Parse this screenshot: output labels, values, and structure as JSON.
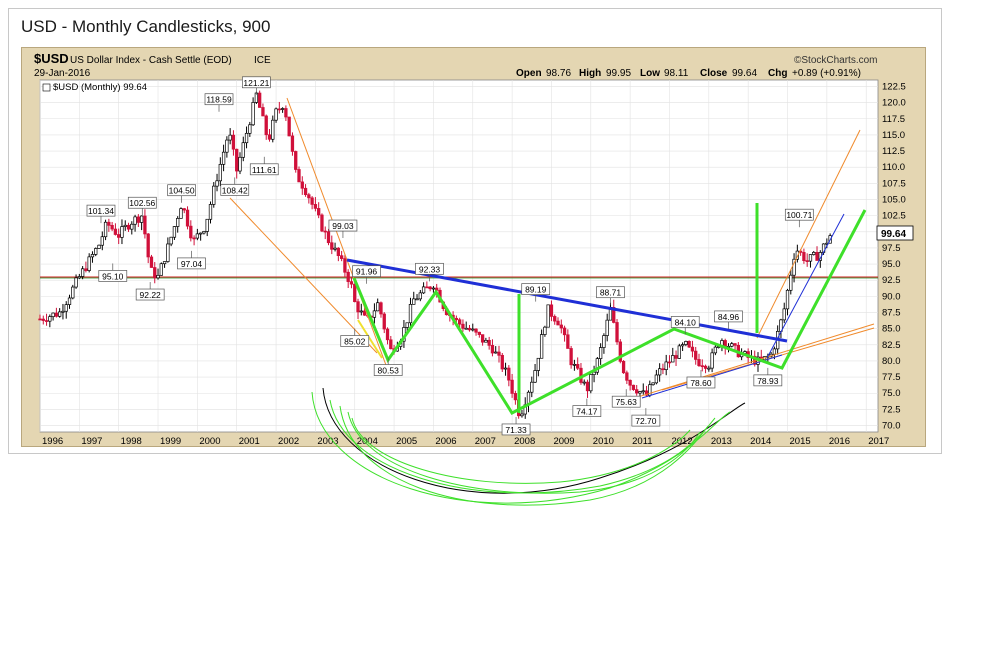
{
  "window": {
    "title": "USD - Monthly Candlesticks, 900"
  },
  "header": {
    "symbol": "$USD",
    "name": "US Dollar Index - Cash Settle (EOD)",
    "exchange": "ICE",
    "date": "29-Jan-2016",
    "brand": "©StockCharts.com",
    "open_label": "Open",
    "open": "98.76",
    "high_label": "High",
    "high": "99.95",
    "low_label": "Low",
    "low": "98.11",
    "close_label": "Close",
    "close": "99.64",
    "chg_label": "Chg",
    "chg": "+0.89 (+0.91%)"
  },
  "legend": {
    "label": "$USD (Monthly) 99.64"
  },
  "last_price_tag": "99.64",
  "colors": {
    "up": "#000000",
    "down": "#d0103a",
    "background": "#e4d6b2",
    "plot": "#ffffff",
    "grid": "#dcdcdc",
    "trend_blue": "#1f2fd6",
    "pattern_green": "#3ee02a",
    "channel_orange": "#f08a2c",
    "support_red": "#d22222",
    "support_green": "#1b8a1b"
  },
  "chart_data": {
    "type": "candlestick",
    "title": "USD - Monthly Candlesticks, 900",
    "ylim": [
      69,
      123.5
    ],
    "xlim": [
      1996,
      2017.3
    ],
    "y_ticks": [
      "122.5",
      "120.0",
      "117.5",
      "115.0",
      "112.5",
      "110.0",
      "107.5",
      "105.0",
      "102.5",
      "100.0",
      "97.5",
      "95.0",
      "92.5",
      "90.0",
      "87.5",
      "85.0",
      "82.5",
      "80.0",
      "77.5",
      "75.0",
      "72.5",
      "70.0"
    ],
    "x_ticks": [
      "1996",
      "1997",
      "1998",
      "1999",
      "2000",
      "2001",
      "2002",
      "2003",
      "2004",
      "2005",
      "2006",
      "2007",
      "2008",
      "2009",
      "2010",
      "2011",
      "2012",
      "2013",
      "2014",
      "2015",
      "2016",
      "2017"
    ],
    "grid": true,
    "legend_position": "top-left",
    "series": [
      {
        "name": "$USD (Monthly)",
        "points": [
          [
            1996.0,
            86.5
          ],
          [
            1996.5,
            87.5
          ],
          [
            1997.0,
            93.0
          ],
          [
            1997.5,
            98.0
          ],
          [
            1997.7,
            101.3
          ],
          [
            1998.0,
            99.5
          ],
          [
            1998.3,
            101.5
          ],
          [
            1998.6,
            102.6
          ],
          [
            1998.8,
            94.0
          ],
          [
            1999.0,
            93.0
          ],
          [
            1999.3,
            98.5
          ],
          [
            1999.6,
            104.5
          ],
          [
            1999.9,
            98.5
          ],
          [
            2000.2,
            101.0
          ],
          [
            2000.5,
            108.5
          ],
          [
            2000.8,
            115.5
          ],
          [
            2001.0,
            109.5
          ],
          [
            2001.3,
            116.5
          ],
          [
            2001.5,
            121.2
          ],
          [
            2001.8,
            114.0
          ],
          [
            2002.0,
            118.5
          ],
          [
            2002.2,
            120.0
          ],
          [
            2002.5,
            109.0
          ],
          [
            2002.8,
            106.0
          ],
          [
            2003.0,
            103.0
          ],
          [
            2003.3,
            99.0
          ],
          [
            2003.6,
            96.0
          ],
          [
            2003.9,
            92.0
          ],
          [
            2004.0,
            89.0
          ],
          [
            2004.3,
            86.0
          ],
          [
            2004.6,
            89.0
          ],
          [
            2004.9,
            81.5
          ],
          [
            2005.2,
            84.0
          ],
          [
            2005.5,
            89.5
          ],
          [
            2005.9,
            91.5
          ],
          [
            2006.0,
            92.0
          ],
          [
            2006.3,
            88.0
          ],
          [
            2006.6,
            86.0
          ],
          [
            2007.0,
            84.5
          ],
          [
            2007.5,
            82.0
          ],
          [
            2007.9,
            77.5
          ],
          [
            2008.2,
            71.5
          ],
          [
            2008.6,
            79.0
          ],
          [
            2008.9,
            88.0
          ],
          [
            2009.2,
            86.0
          ],
          [
            2009.5,
            80.0
          ],
          [
            2009.9,
            75.5
          ],
          [
            2010.2,
            80.5
          ],
          [
            2010.5,
            88.0
          ],
          [
            2010.8,
            79.0
          ],
          [
            2011.0,
            76.5
          ],
          [
            2011.4,
            74.5
          ],
          [
            2011.7,
            78.0
          ],
          [
            2012.0,
            80.0
          ],
          [
            2012.4,
            82.5
          ],
          [
            2012.7,
            80.0
          ],
          [
            2013.0,
            79.5
          ],
          [
            2013.3,
            83.5
          ],
          [
            2013.7,
            81.5
          ],
          [
            2014.0,
            80.5
          ],
          [
            2014.3,
            79.8
          ],
          [
            2014.6,
            81.0
          ],
          [
            2014.9,
            87.5
          ],
          [
            2015.2,
            97.5
          ],
          [
            2015.5,
            95.5
          ],
          [
            2015.8,
            96.5
          ],
          [
            2016.1,
            99.6
          ]
        ]
      }
    ],
    "annotations": [
      "101.34",
      "95.10",
      "102.56",
      "92.22",
      "104.50",
      "97.04",
      "118.59",
      "108.42",
      "121.21",
      "111.61",
      "99.03",
      "91.96",
      "85.02",
      "80.53",
      "92.33",
      "71.33",
      "89.19",
      "74.17",
      "88.71",
      "75.63",
      "72.70",
      "84.10",
      "78.60",
      "84.96",
      "78.93",
      "100.71"
    ]
  }
}
